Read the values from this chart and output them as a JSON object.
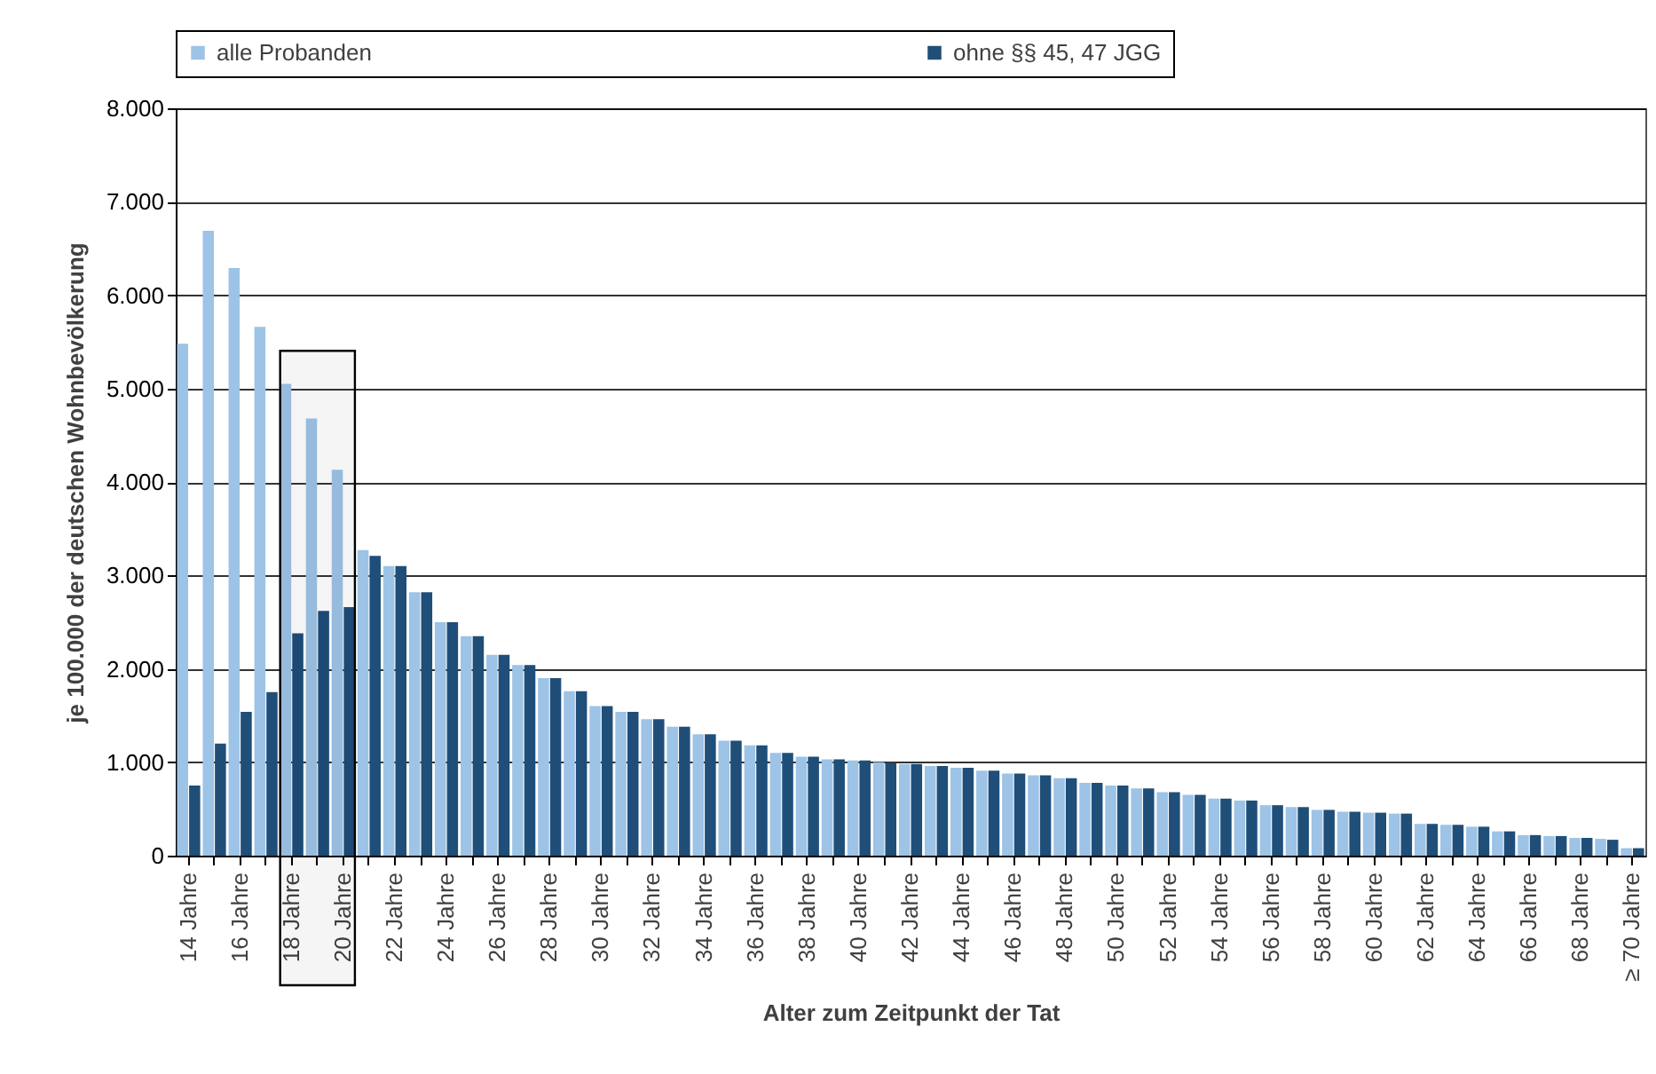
{
  "chart_data": {
    "type": "bar",
    "xlabel": "Alter zum Zeitpunkt der Tat",
    "ylabel": "je 100.000 der deutschen Wohnbevölkerung",
    "categories": [
      "14 Jahre",
      null,
      "16 Jahre",
      null,
      "18 Jahre",
      null,
      "20 Jahre",
      null,
      "22 Jahre",
      null,
      "24 Jahre",
      null,
      "26 Jahre",
      null,
      "28 Jahre",
      null,
      "30 Jahre",
      null,
      "32 Jahre",
      null,
      "34 Jahre",
      null,
      "36 Jahre",
      null,
      "38 Jahre",
      null,
      "40 Jahre",
      null,
      "42 Jahre",
      null,
      "44 Jahre",
      null,
      "46 Jahre",
      null,
      "48 Jahre",
      null,
      "50 Jahre",
      null,
      "52 Jahre",
      null,
      "54 Jahre",
      null,
      "56 Jahre",
      null,
      "58 Jahre",
      null,
      "60 Jahre",
      null,
      "62 Jahre",
      null,
      "64 Jahre",
      null,
      "66 Jahre",
      null,
      "68 Jahre",
      null,
      "≥ 70 Jahre"
    ],
    "series": [
      {
        "name": "alle Probanden",
        "color": "#9dc3e6",
        "values": [
          5480,
          6690,
          6290,
          5660,
          5050,
          4680,
          4130,
          3270,
          3100,
          2820,
          2500,
          2350,
          2150,
          2040,
          1900,
          1760,
          1600,
          1540,
          1460,
          1380,
          1300,
          1230,
          1180,
          1100,
          1060,
          1030,
          1020,
          1000,
          980,
          960,
          940,
          910,
          880,
          860,
          830,
          780,
          750,
          720,
          680,
          650,
          610,
          590,
          540,
          520,
          490,
          470,
          460,
          450,
          340,
          330,
          310,
          260,
          220,
          210,
          190,
          180,
          80
        ]
      },
      {
        "name": "ohne §§ 45, 47 JGG",
        "color": "#1f4e79",
        "values": [
          750,
          1200,
          1540,
          1750,
          2380,
          2620,
          2660,
          3210,
          3100,
          2820,
          2500,
          2350,
          2150,
          2040,
          1900,
          1760,
          1600,
          1540,
          1460,
          1380,
          1300,
          1230,
          1180,
          1100,
          1060,
          1030,
          1020,
          990,
          980,
          960,
          940,
          910,
          880,
          860,
          830,
          780,
          750,
          720,
          680,
          650,
          610,
          590,
          540,
          520,
          490,
          470,
          460,
          450,
          340,
          330,
          310,
          260,
          220,
          210,
          190,
          170,
          80
        ]
      }
    ],
    "ylim": [
      0,
      8000
    ],
    "yticks": [
      0,
      {
        "value": 1000,
        "label": "1.000"
      },
      {
        "value": 2000,
        "label": "2.000"
      },
      {
        "value": 3000,
        "label": "3.000"
      },
      {
        "value": 4000,
        "label": "4.000"
      },
      {
        "value": 5000,
        "label": "5.000"
      },
      {
        "value": 6000,
        "label": "6.000"
      },
      {
        "value": 7000,
        "label": "7.000"
      },
      {
        "value": 8000,
        "label": "8.000"
      }
    ],
    "grid": "y",
    "legend": "top",
    "bands": [
      {
        "axis": "x",
        "from": "18 Jahre",
        "to": "20 Jahre"
      }
    ]
  }
}
